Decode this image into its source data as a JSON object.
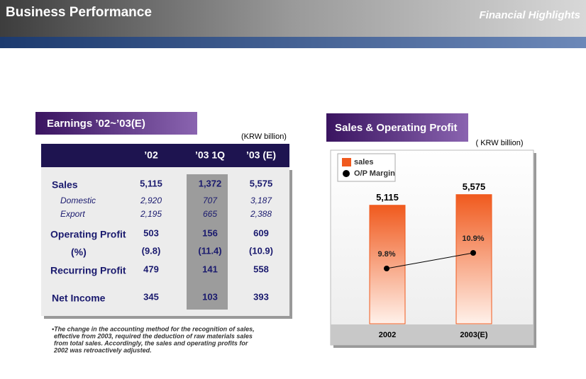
{
  "header": {
    "title": "Business Performance",
    "subtitle": "Financial Highlights"
  },
  "earnings": {
    "title": "Earnings ’02~’03(E)",
    "unit": "(KRW billion)",
    "columns": [
      "’02",
      "’03 1Q",
      "’03 (E)"
    ],
    "rows": [
      {
        "label": "Sales",
        "cells": [
          "5,115",
          "1,372",
          "5,575"
        ]
      },
      {
        "label": "Domestic",
        "cells": [
          "2,920",
          "707",
          "3,187"
        ]
      },
      {
        "label": "Export",
        "cells": [
          "2,195",
          "665",
          "2,388"
        ]
      },
      {
        "label": "Operating Profit",
        "cells": [
          "503",
          "156",
          "609"
        ]
      },
      {
        "label": "(%)",
        "cells": [
          "(9.8)",
          "(11.4)",
          "(10.9)"
        ]
      },
      {
        "label": "Recurring Profit",
        "cells": [
          "479",
          "141",
          "558"
        ]
      },
      {
        "label": "Net Income",
        "cells": [
          "345",
          "103",
          "393"
        ]
      }
    ],
    "footnote": [
      "•The change in the accounting method for the recognition of sales,",
      "effective from 2003, required the deduction of raw materials sales",
      "from total sales. Accordingly, the sales and operating profits for",
      "2002 was retroactively adjusted."
    ]
  },
  "chart_data": {
    "type": "bar",
    "title": "Sales & Operating Profit",
    "unit": "( KRW billion)",
    "categories": [
      "2002",
      "2003(E)"
    ],
    "series": [
      {
        "name": "sales",
        "color": "#f05a1e",
        "values": [
          5115,
          5575
        ],
        "value_labels": [
          "5,115",
          "5,575"
        ]
      },
      {
        "name": "O/P Margin",
        "color": "#000000",
        "type": "line",
        "axis": "y2",
        "values": [
          9.8,
          10.9
        ],
        "value_labels": [
          "9.8%",
          "10.9%"
        ]
      }
    ],
    "ylim": [
      0,
      7400
    ],
    "y2lim": [
      5.9,
      18
    ]
  }
}
